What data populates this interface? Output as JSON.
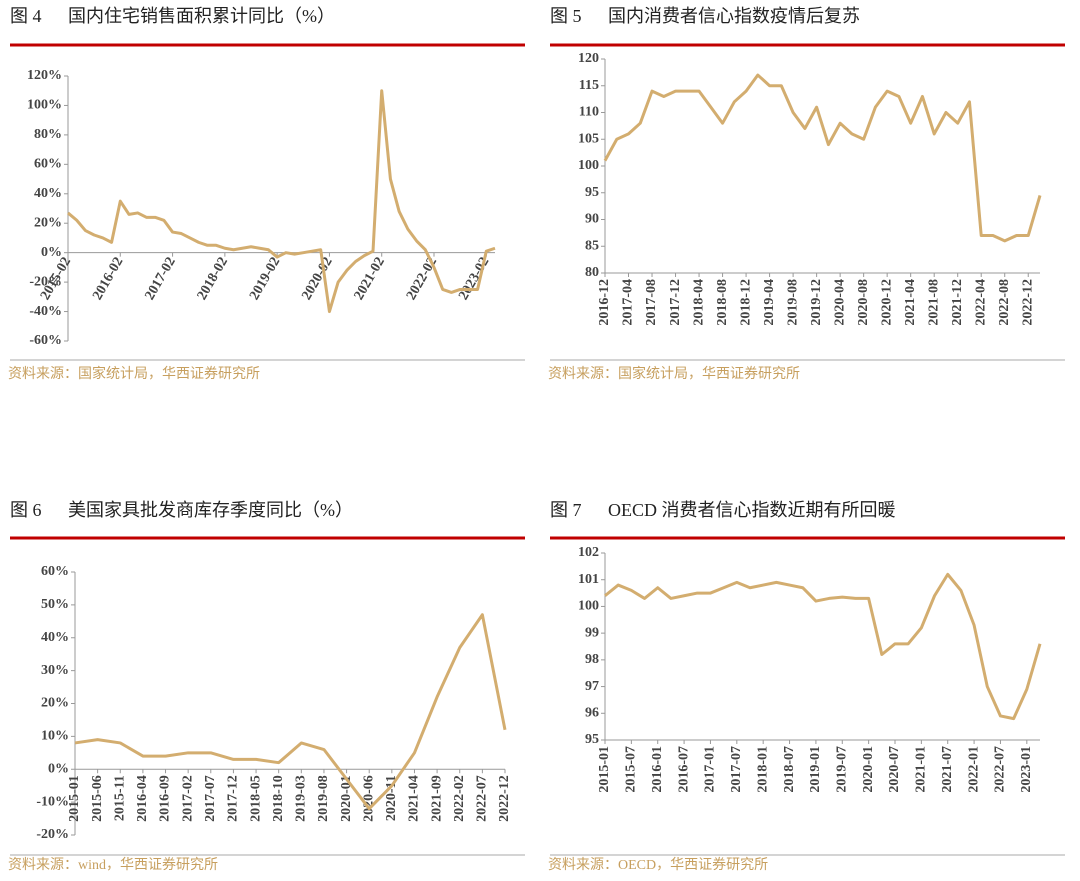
{
  "chart_data": [
    {
      "type": "line",
      "figure_label": "图 4",
      "title": "国内住宅销售面积累计同比（%）",
      "source": "资料来源：国家统计局，华西证券研究所",
      "categories": [
        "2015-02",
        null,
        null,
        null,
        null,
        null,
        "2016-02",
        null,
        null,
        null,
        null,
        null,
        "2017-02",
        null,
        null,
        null,
        null,
        null,
        "2018-02",
        null,
        null,
        null,
        null,
        null,
        "2019-02",
        null,
        null,
        null,
        null,
        null,
        "2020-02",
        null,
        null,
        null,
        null,
        null,
        "2021-02",
        null,
        null,
        null,
        null,
        null,
        "2022-02",
        null,
        null,
        null,
        null,
        null,
        "2023-02",
        null
      ],
      "values": [
        27,
        22,
        15,
        12,
        10,
        7,
        35,
        26,
        27,
        24,
        24,
        22,
        14,
        13,
        10,
        7,
        5,
        5,
        3,
        2,
        3,
        4,
        3,
        2,
        -3,
        0,
        -1,
        0,
        1,
        2,
        -40,
        -20,
        -12,
        -6,
        -2,
        1,
        110,
        50,
        28,
        16,
        8,
        2,
        -10,
        -25,
        -27,
        -25,
        -25,
        -25,
        1,
        3
      ],
      "color": "#d3ad6f",
      "ylim": [
        -60,
        120
      ],
      "yticks": [
        {
          "value": -60,
          "label": "-60%"
        },
        {
          "value": -40,
          "label": "-40%"
        },
        {
          "value": -20,
          "label": "-20%"
        },
        {
          "value": 0,
          "label": "0%"
        },
        {
          "value": 20,
          "label": "20%"
        },
        {
          "value": 40,
          "label": "40%"
        },
        {
          "value": 60,
          "label": "60%"
        },
        {
          "value": 80,
          "label": "80%"
        },
        {
          "value": 100,
          "label": "100%"
        },
        {
          "value": 120,
          "label": "120%"
        }
      ]
    },
    {
      "type": "line",
      "figure_label": "图 5",
      "title": "国内消费者信心指数疫情后复苏",
      "source": "资料来源：国家统计局，华西证券研究所",
      "categories": [
        "2016-12",
        null,
        "2017-04",
        null,
        "2017-08",
        null,
        "2017-12",
        null,
        "2018-04",
        null,
        "2018-08",
        null,
        "2018-12",
        null,
        "2019-04",
        null,
        "2019-08",
        null,
        "2019-12",
        null,
        "2020-04",
        null,
        "2020-08",
        null,
        "2020-12",
        null,
        "2021-04",
        null,
        "2021-08",
        null,
        "2021-12",
        null,
        "2022-04",
        null,
        "2022-08",
        null,
        "2022-12",
        null
      ],
      "values": [
        101,
        105,
        106,
        108,
        114,
        113,
        114,
        114,
        114,
        111,
        108,
        112,
        114,
        117,
        115,
        115,
        110,
        107,
        111,
        104,
        108,
        106,
        105,
        111,
        114,
        113,
        108,
        113,
        106,
        110,
        108,
        112,
        87,
        87,
        86,
        87,
        87,
        94.5
      ],
      "color": "#d3ad6f",
      "ylim": [
        80,
        120
      ],
      "yticks": [
        80,
        85,
        90,
        95,
        100,
        105,
        110,
        115,
        120
      ]
    },
    {
      "type": "line",
      "figure_label": "图 6",
      "title": "美国家具批发商库存季度同比（%）",
      "source": "资料来源：wind，华西证券研究所",
      "categories": [
        "2015-01",
        "2015-06",
        "2015-11",
        "2016-04",
        "2016-09",
        "2017-02",
        "2017-07",
        "2017-12",
        "2018-05",
        "2018-10",
        "2019-03",
        "2019-08",
        "2020-01",
        "2020-06",
        "2020-11",
        "2021-04",
        "2021-09",
        "2022-02",
        "2022-07",
        "2022-12"
      ],
      "values": [
        8,
        9,
        8,
        4,
        4,
        5,
        5,
        3,
        3,
        2,
        8,
        6,
        -3,
        -12,
        -5,
        5,
        22,
        37,
        47,
        12
      ],
      "color": "#d3ad6f",
      "ylim": [
        -20,
        60
      ],
      "yticks": [
        {
          "value": -20,
          "label": "-20%"
        },
        {
          "value": -10,
          "label": "-10%"
        },
        {
          "value": 0,
          "label": "0%"
        },
        {
          "value": 10,
          "label": "10%"
        },
        {
          "value": 20,
          "label": "20%"
        },
        {
          "value": 30,
          "label": "30%"
        },
        {
          "value": 40,
          "label": "40%"
        },
        {
          "value": 50,
          "label": "50%"
        },
        {
          "value": 60,
          "label": "60%"
        }
      ]
    },
    {
      "type": "line",
      "figure_label": "图 7",
      "title": "OECD 消费者信心指数近期有所回暖",
      "source": "资料来源：OECD，华西证券研究所",
      "categories": [
        "2015-01",
        null,
        "2015-07",
        null,
        "2016-01",
        null,
        "2016-07",
        null,
        "2017-01",
        null,
        "2017-07",
        null,
        "2018-01",
        null,
        "2018-07",
        null,
        "2019-01",
        null,
        "2019-07",
        null,
        "2020-01",
        null,
        "2020-07",
        null,
        "2021-01",
        null,
        "2021-07",
        null,
        "2022-01",
        null,
        "2022-07",
        null,
        "2023-01",
        null
      ],
      "values": [
        100.4,
        100.8,
        100.6,
        100.3,
        100.7,
        100.3,
        100.4,
        100.5,
        100.5,
        100.7,
        100.9,
        100.7,
        100.8,
        100.9,
        100.8,
        100.7,
        100.2,
        100.3,
        100.35,
        100.3,
        100.3,
        98.2,
        98.6,
        98.6,
        99.2,
        100.4,
        101.2,
        100.6,
        99.3,
        97.0,
        95.9,
        95.8,
        96.9,
        98.6
      ],
      "color": "#d3ad6f",
      "ylim": [
        95,
        102
      ],
      "yticks": [
        95,
        96,
        97,
        98,
        99,
        100,
        101,
        102
      ]
    }
  ]
}
